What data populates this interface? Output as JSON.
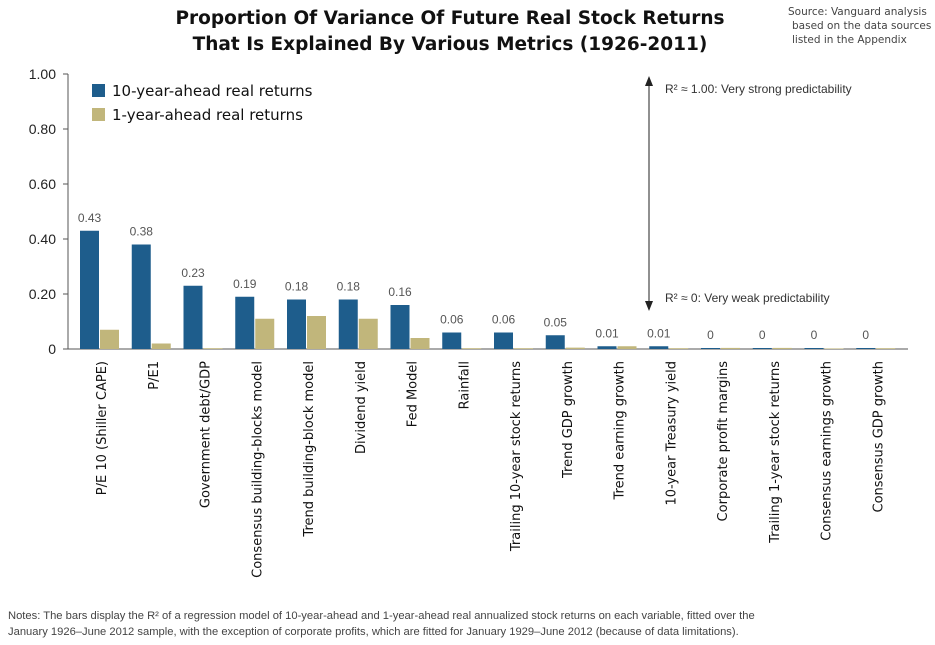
{
  "title_line1": "Proportion Of Variance Of Future Real Stock Returns",
  "title_line2": "That Is Explained By Various Metrics (1926-2011)",
  "source_line1": "Source: Vanguard analysis",
  "source_line2": "based on the data sources",
  "source_line3": "listed in the Appendix",
  "notes_line1": "Notes: The bars display the R² of a regression model of 10-year-ahead and 1-year-ahead real annualized stock returns on each variable, fitted over the",
  "notes_line2": "January 1926–June 2012 sample, with the exception of corporate profits, which are fitted for January 1929–June 2012 (because of data limitations).",
  "chart_data": {
    "type": "bar",
    "categories": [
      "P/E 10 (Shiller CAPE)",
      "P/E1",
      "Government debt/GDP",
      "Consensus building-blocks model",
      "Trend building-block model",
      "Dividend yield",
      "Fed Model",
      "Rainfall",
      "Trailing 10-year stock returns",
      "Trend GDP growth",
      "Trend earning growth",
      "10-year Treasury yield",
      "Corporate profit margins",
      "Trailing 1-year stock returns",
      "Consensus earnings growth",
      "Consensus GDP growth"
    ],
    "series": [
      {
        "name": "10-year-ahead real returns",
        "color": "#1e5d8c",
        "values": [
          0.43,
          0.38,
          0.23,
          0.19,
          0.18,
          0.18,
          0.16,
          0.06,
          0.06,
          0.05,
          0.01,
          0.01,
          0,
          0,
          0,
          0
        ]
      },
      {
        "name": "1-year-ahead real returns",
        "color": "#c1b67b",
        "values": [
          0.07,
          0.02,
          0.0,
          0.11,
          0.12,
          0.11,
          0.04,
          0.0,
          0.0,
          0.005,
          0.01,
          0.0,
          0.004,
          0.004,
          0.002,
          0.0
        ]
      }
    ],
    "data_labels": [
      "0.43",
      "0.38",
      "0.23",
      "0.19",
      "0.18",
      "0.18",
      "0.16",
      "0.06",
      "0.06",
      "0.05",
      "0.01",
      "0.01",
      "0",
      "0",
      "0",
      "0"
    ],
    "y_ticks": [
      0,
      0.2,
      0.4,
      0.6,
      0.8,
      1.0
    ],
    "y_tick_labels": [
      "0",
      "0.20",
      "0.40",
      "0.60",
      "0.80",
      "1.00"
    ],
    "ylim": [
      0,
      1.0
    ],
    "legend_position": "top-left",
    "annotations": {
      "top": "R² ≈ 1.00: Very strong predictability",
      "bottom": "R² ≈ 0: Very weak predictability"
    },
    "annotation_color": "#222222",
    "axis_color": "#555555",
    "grid": false
  }
}
